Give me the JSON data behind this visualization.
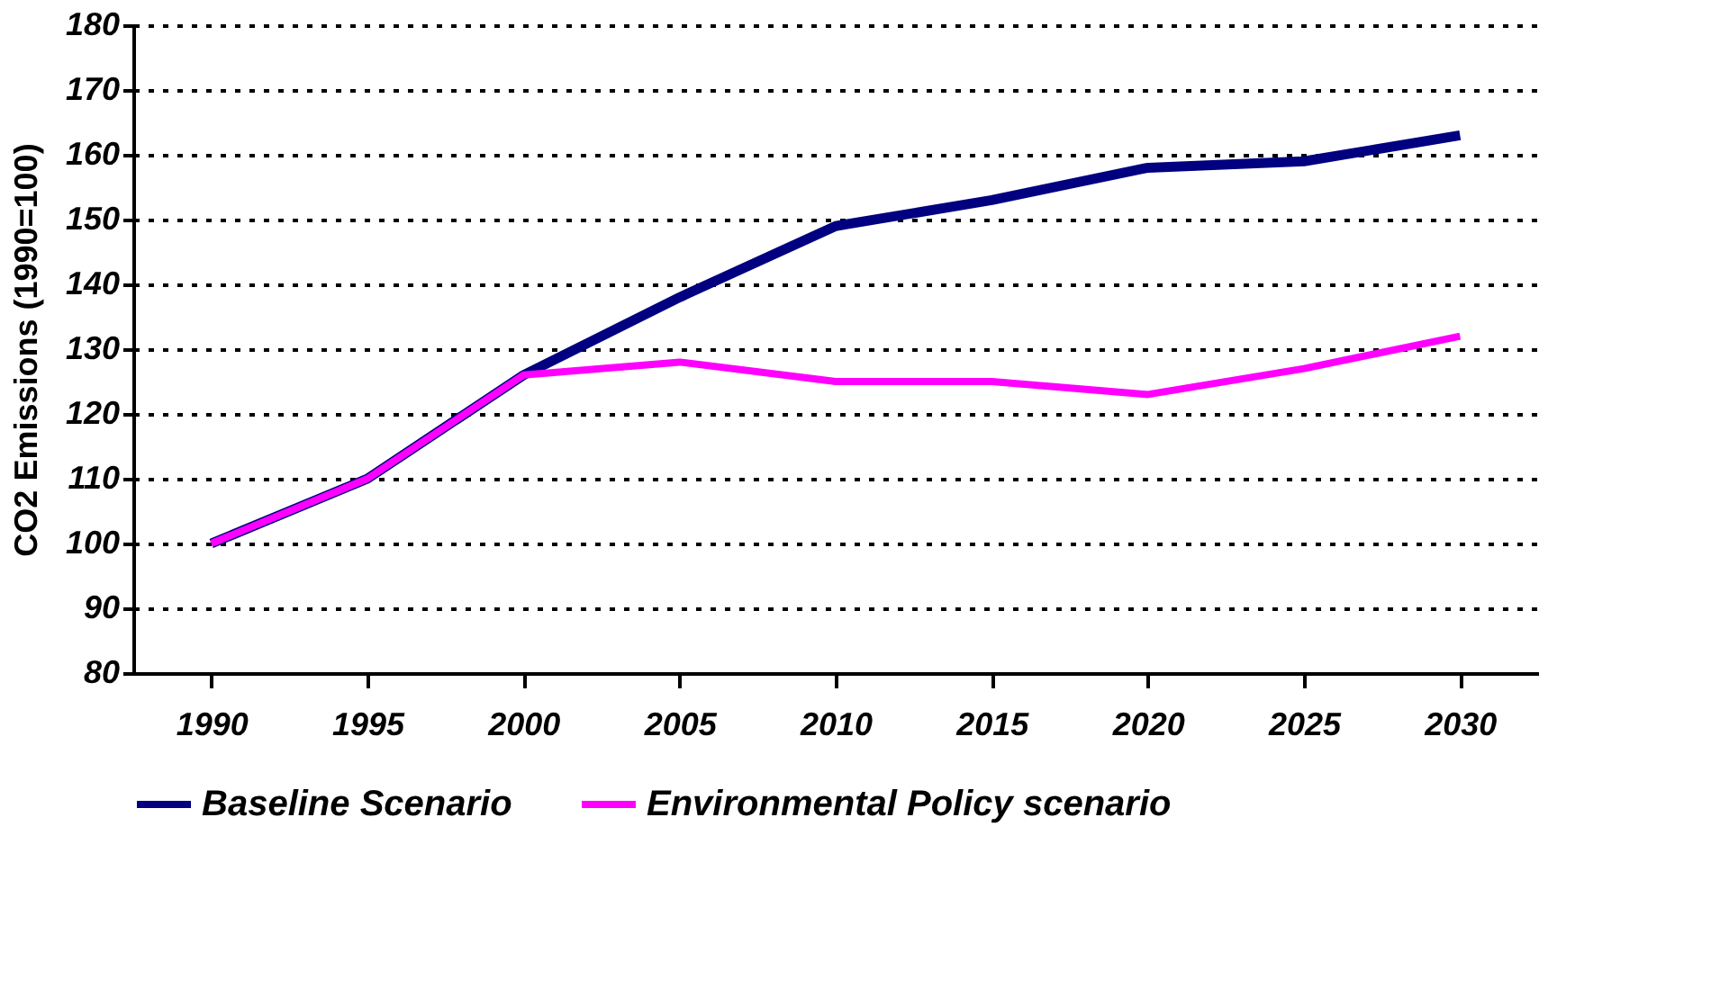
{
  "chart_data": {
    "type": "line",
    "ylabel": "CO2 Emissions (1990=100)",
    "categories": [
      "1990",
      "1995",
      "2000",
      "2005",
      "2010",
      "2015",
      "2020",
      "2025",
      "2030"
    ],
    "series": [
      {
        "name": "Baseline Scenario",
        "color": "#000080",
        "values": [
          100,
          110,
          126,
          138,
          149,
          153,
          158,
          159,
          163
        ]
      },
      {
        "name": "Environmental Policy scenario",
        "color": "#ff00ff",
        "values": [
          100,
          110,
          126,
          128,
          125,
          125,
          123,
          127,
          132
        ]
      }
    ],
    "ylim": [
      80,
      180
    ],
    "yticks": [
      80,
      90,
      100,
      110,
      120,
      130,
      140,
      150,
      160,
      170,
      180
    ],
    "grid": "y",
    "legend": "bottom",
    "marker": "none",
    "line_style": "solid"
  }
}
